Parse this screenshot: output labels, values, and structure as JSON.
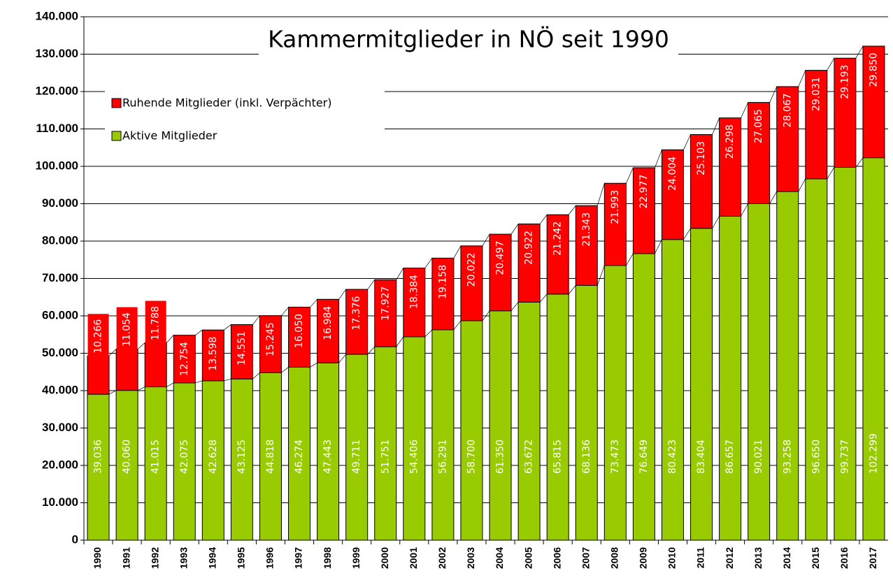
{
  "chart_data": {
    "type": "stacked_bar",
    "title": "Kammermitglieder in NÖ seit 1990",
    "categories": [
      "1990",
      "1991",
      "1992",
      "1993",
      "1994",
      "1995",
      "1996",
      "1997",
      "1998",
      "1999",
      "2000",
      "2001",
      "2002",
      "2003",
      "2004",
      "2005",
      "2006",
      "2007",
      "2008",
      "2009",
      "2010",
      "2011",
      "2012",
      "2013",
      "2014",
      "2015",
      "2016",
      "2017"
    ],
    "series": [
      {
        "name": "Aktive Mitglieder",
        "color": "#99cc00",
        "values": [
          39036,
          40060,
          41015,
          42075,
          42628,
          43125,
          44818,
          46274,
          47443,
          49711,
          51751,
          54406,
          56291,
          58700,
          61350,
          63672,
          65815,
          68136,
          73473,
          76649,
          80423,
          83404,
          86657,
          90021,
          93258,
          96650,
          99737,
          102299
        ],
        "value_labels": [
          "39.036",
          "40.060",
          "41.015",
          "42.075",
          "42.628",
          "43.125",
          "44.818",
          "46.274",
          "47.443",
          "49.711",
          "51.751",
          "54.406",
          "56.291",
          "58.700",
          "61.350",
          "63.672",
          "65.815",
          "68.136",
          "73.473",
          "76.649",
          "80.423",
          "83.404",
          "86.657",
          "90.021",
          "93.258",
          "96.650",
          "99.737",
          "102.299"
        ]
      },
      {
        "name": "Ruhende Mitglieder (inkl. Verpächter)",
        "color": "#ff0000",
        "values": [
          10266,
          11054,
          11788,
          12754,
          13598,
          14551,
          15245,
          16050,
          16984,
          17376,
          17927,
          18384,
          19158,
          20022,
          20497,
          20922,
          21242,
          21343,
          21993,
          22977,
          24004,
          25103,
          26298,
          27065,
          28067,
          29031,
          29193,
          29850
        ],
        "value_labels": [
          "10.266",
          "11.054",
          "11.788",
          "12.754",
          "13.598",
          "14.551",
          "15.245",
          "16.050",
          "16.984",
          "17.376",
          "17.927",
          "18.384",
          "19.158",
          "20.022",
          "20.497",
          "20.922",
          "21.242",
          "21.343",
          "21.993",
          "22.977",
          "24.004",
          "25.103",
          "26.298",
          "27.065",
          "28.067",
          "29.031",
          "29.193",
          "29.850"
        ]
      }
    ],
    "ylim": [
      0,
      140000
    ],
    "yticks": [
      0,
      {
        "value": 10000,
        "label": "10.000"
      },
      {
        "value": 20000,
        "label": "20.000"
      },
      {
        "value": 30000,
        "label": "30.000"
      },
      {
        "value": 40000,
        "label": "40.000"
      },
      {
        "value": 50000,
        "label": "50.000"
      },
      {
        "value": 60000,
        "label": "60.000"
      },
      {
        "value": 70000,
        "label": "70.000"
      },
      {
        "value": 80000,
        "label": "80.000"
      },
      {
        "value": 90000,
        "label": "90.000"
      },
      {
        "value": 100000,
        "label": "100.000"
      },
      {
        "value": 110000,
        "label": "110.000"
      },
      {
        "value": 120000,
        "label": "120.000"
      },
      {
        "value": 130000,
        "label": "130.000"
      },
      {
        "value": 140000,
        "label": "140.000"
      }
    ],
    "grid": true
  }
}
